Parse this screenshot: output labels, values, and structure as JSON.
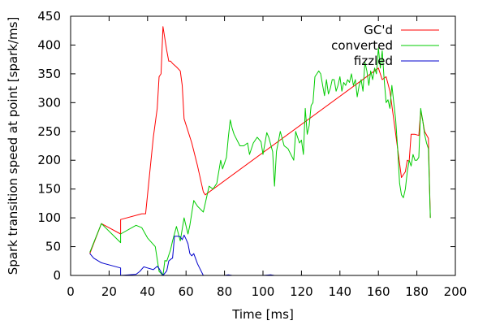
{
  "chart_data": {
    "type": "line",
    "title": "",
    "xlabel": "Time [ms]",
    "ylabel": "Spark transition speed at point [spark/ms]",
    "xlim": [
      0,
      200
    ],
    "ylim": [
      0,
      450
    ],
    "xticks": [
      0,
      20,
      40,
      60,
      80,
      100,
      120,
      140,
      160,
      180,
      200
    ],
    "yticks": [
      0,
      50,
      100,
      150,
      200,
      250,
      300,
      350,
      400,
      450
    ],
    "grid": false,
    "legend_position": "top-right",
    "series": [
      {
        "name": "GC'd",
        "color": "#ff0000",
        "points": [
          [
            10,
            38
          ],
          [
            16,
            90
          ],
          [
            26,
            72
          ],
          [
            26,
            97
          ],
          [
            37,
            107
          ],
          [
            39,
            107
          ],
          [
            43,
            240
          ],
          [
            45,
            290
          ],
          [
            46,
            345
          ],
          [
            47,
            350
          ],
          [
            48,
            432
          ],
          [
            50,
            390
          ],
          [
            51,
            372
          ],
          [
            52,
            372
          ],
          [
            53,
            368
          ],
          [
            55,
            362
          ],
          [
            57,
            355
          ],
          [
            58,
            330
          ],
          [
            59,
            272
          ],
          [
            63,
            230
          ],
          [
            66,
            190
          ],
          [
            69,
            145
          ],
          [
            70,
            140
          ],
          [
            160,
            360
          ],
          [
            162,
            340
          ],
          [
            164,
            345
          ],
          [
            166,
            320
          ],
          [
            168,
            270
          ],
          [
            170,
            220
          ],
          [
            172,
            170
          ],
          [
            174,
            180
          ],
          [
            175,
            200
          ],
          [
            176,
            198
          ],
          [
            177,
            245
          ],
          [
            179,
            245
          ],
          [
            181,
            243
          ],
          [
            182,
            285
          ],
          [
            183,
            270
          ],
          [
            184,
            250
          ],
          [
            186,
            238
          ],
          [
            187,
            100
          ]
        ]
      },
      {
        "name": "converted",
        "color": "#00cc00",
        "points": [
          [
            10,
            40
          ],
          [
            16,
            90
          ],
          [
            26,
            57
          ],
          [
            26,
            72
          ],
          [
            34,
            87
          ],
          [
            37,
            83
          ],
          [
            40,
            65
          ],
          [
            44,
            50
          ],
          [
            46,
            7
          ],
          [
            48,
            0
          ],
          [
            49,
            26
          ],
          [
            50,
            25
          ],
          [
            52,
            45
          ],
          [
            53,
            60
          ],
          [
            55,
            85
          ],
          [
            57,
            60
          ],
          [
            59,
            100
          ],
          [
            61,
            72
          ],
          [
            62,
            87
          ],
          [
            64,
            130
          ],
          [
            66,
            120
          ],
          [
            69,
            110
          ],
          [
            72,
            155
          ],
          [
            74,
            150
          ],
          [
            76,
            160
          ],
          [
            78,
            200
          ],
          [
            79,
            185
          ],
          [
            80,
            195
          ],
          [
            81,
            205
          ],
          [
            82,
            240
          ],
          [
            83,
            270
          ],
          [
            84,
            255
          ],
          [
            85,
            245
          ],
          [
            88,
            225
          ],
          [
            90,
            225
          ],
          [
            92,
            230
          ],
          [
            93,
            210
          ],
          [
            95,
            230
          ],
          [
            97,
            240
          ],
          [
            99,
            232
          ],
          [
            100,
            210
          ],
          [
            102,
            248
          ],
          [
            103,
            240
          ],
          [
            105,
            215
          ],
          [
            106,
            155
          ],
          [
            107,
            215
          ],
          [
            109,
            250
          ],
          [
            111,
            225
          ],
          [
            113,
            220
          ],
          [
            116,
            200
          ],
          [
            117,
            250
          ],
          [
            119,
            230
          ],
          [
            120,
            235
          ],
          [
            121,
            210
          ],
          [
            122,
            290
          ],
          [
            123,
            245
          ],
          [
            124,
            260
          ],
          [
            125,
            295
          ],
          [
            126,
            300
          ],
          [
            127,
            345
          ],
          [
            128,
            350
          ],
          [
            129,
            355
          ],
          [
            130,
            350
          ],
          [
            131,
            330
          ],
          [
            132,
            312
          ],
          [
            133,
            340
          ],
          [
            134,
            315
          ],
          [
            135,
            325
          ],
          [
            136,
            340
          ],
          [
            137,
            340
          ],
          [
            138,
            320
          ],
          [
            139,
            330
          ],
          [
            140,
            345
          ],
          [
            141,
            320
          ],
          [
            142,
            335
          ],
          [
            143,
            330
          ],
          [
            144,
            340
          ],
          [
            145,
            335
          ],
          [
            146,
            350
          ],
          [
            147,
            330
          ],
          [
            148,
            340
          ],
          [
            149,
            310
          ],
          [
            150,
            330
          ],
          [
            151,
            340
          ],
          [
            152,
            320
          ],
          [
            153,
            370
          ],
          [
            154,
            355
          ],
          [
            155,
            330
          ],
          [
            156,
            355
          ],
          [
            157,
            340
          ],
          [
            158,
            360
          ],
          [
            159,
            350
          ],
          [
            160,
            395
          ],
          [
            161,
            360
          ],
          [
            162,
            390
          ],
          [
            163,
            340
          ],
          [
            164,
            300
          ],
          [
            165,
            305
          ],
          [
            166,
            290
          ],
          [
            167,
            330
          ],
          [
            169,
            270
          ],
          [
            170,
            220
          ],
          [
            171,
            160
          ],
          [
            172,
            140
          ],
          [
            173,
            135
          ],
          [
            174,
            150
          ],
          [
            175,
            180
          ],
          [
            176,
            200
          ],
          [
            177,
            190
          ],
          [
            178,
            210
          ],
          [
            179,
            200
          ],
          [
            180,
            200
          ],
          [
            181,
            205
          ],
          [
            182,
            290
          ],
          [
            183,
            270
          ],
          [
            184,
            245
          ],
          [
            185,
            230
          ],
          [
            186,
            220
          ],
          [
            187,
            100
          ]
        ]
      },
      {
        "name": "fizzled",
        "color": "#0000cc",
        "points": [
          [
            10,
            38
          ],
          [
            12,
            30
          ],
          [
            16,
            22
          ],
          [
            26,
            13
          ],
          [
            26,
            0
          ],
          [
            34,
            2
          ],
          [
            36,
            7
          ],
          [
            38,
            15
          ],
          [
            40,
            13
          ],
          [
            43,
            10
          ],
          [
            45,
            16
          ],
          [
            46,
            12
          ],
          [
            48,
            0
          ],
          [
            50,
            8
          ],
          [
            51,
            25
          ],
          [
            52,
            28
          ],
          [
            53,
            30
          ],
          [
            54,
            68
          ],
          [
            56,
            68
          ],
          [
            57,
            67
          ],
          [
            58,
            62
          ],
          [
            59,
            70
          ],
          [
            60,
            63
          ],
          [
            61,
            55
          ],
          [
            62,
            38
          ],
          [
            63,
            34
          ],
          [
            64,
            38
          ],
          [
            66,
            20
          ],
          [
            69,
            0
          ],
          [
            80,
            0
          ],
          [
            82,
            1
          ],
          [
            84,
            0
          ],
          [
            100,
            0
          ],
          [
            104,
            1
          ],
          [
            106,
            0
          ]
        ]
      }
    ]
  }
}
